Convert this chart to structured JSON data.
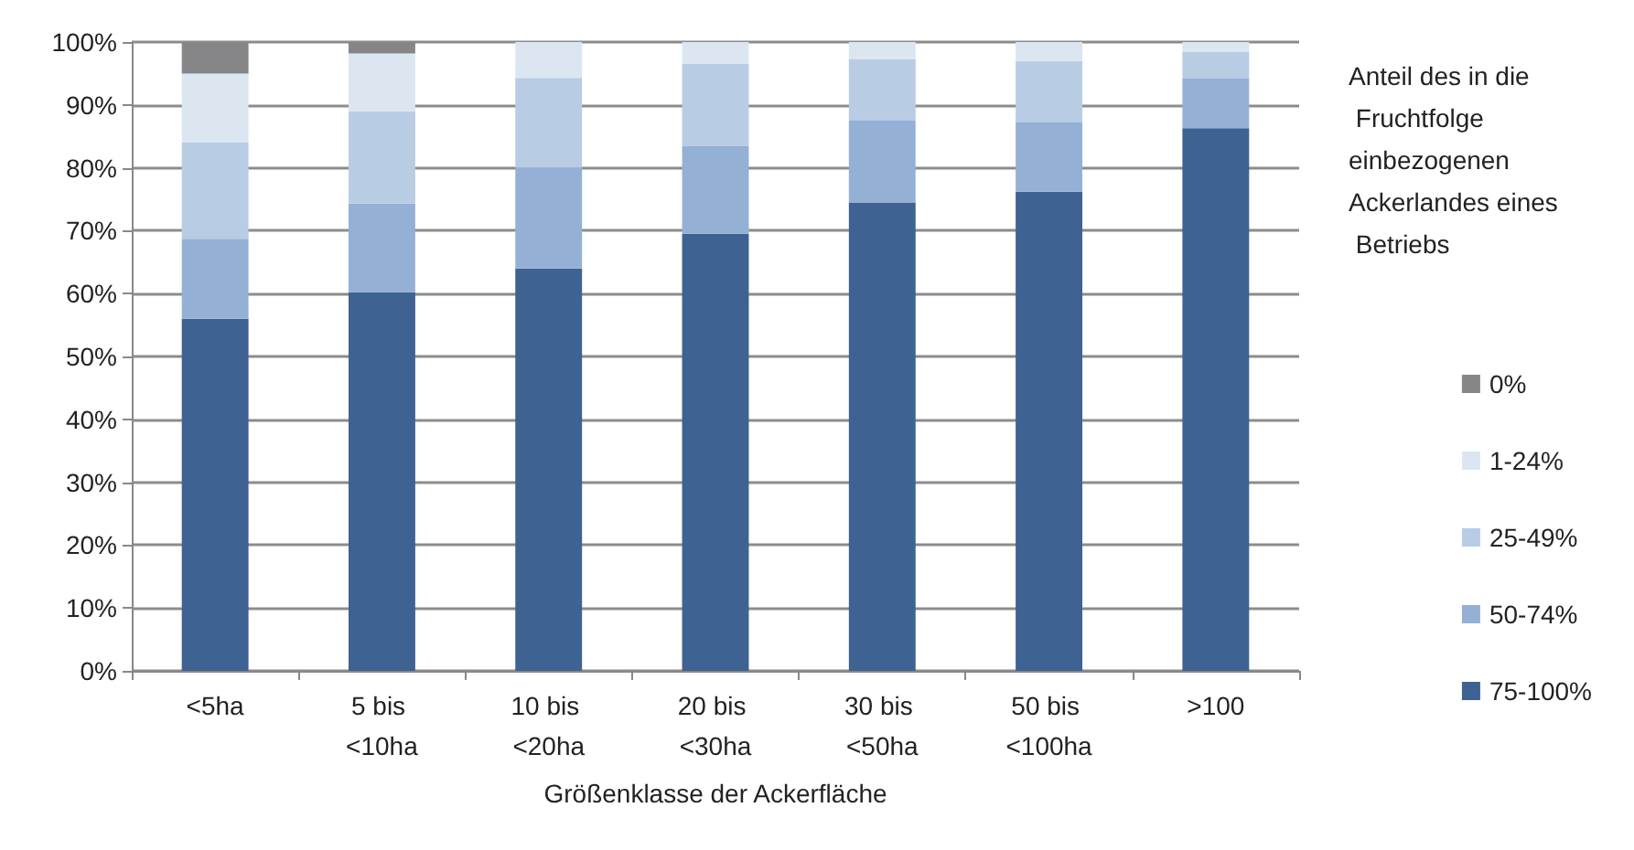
{
  "chart_data": {
    "type": "bar",
    "stacked": true,
    "xlabel": "Größenklasse der Ackerfläche",
    "legend_title": "Anteil des in die Fruchtfolge einbezogenen Ackerlandes eines Betriebs",
    "legend": "right",
    "categories": [
      "<5ha",
      "5 bis <10ha",
      "10 bis <20ha",
      "20 bis <30ha",
      "30 bis <50ha",
      "50 bis <100ha",
      ">100"
    ],
    "series": [
      {
        "name": "75-100%",
        "color": "#3e6291",
        "values": [
          56,
          60.2,
          64,
          69.5,
          74.5,
          76.2,
          86.3
        ]
      },
      {
        "name": "50-74%",
        "color": "#95b0d5",
        "values": [
          12.7,
          14.1,
          16,
          14,
          13,
          11,
          7.9
        ]
      },
      {
        "name": "25-49%",
        "color": "#b8cce4",
        "values": [
          15.3,
          14.7,
          14.3,
          13,
          9.8,
          9.8,
          4.2
        ]
      },
      {
        "name": "1-24%",
        "color": "#dce6f1",
        "values": [
          11,
          9.2,
          5.7,
          3.5,
          2.7,
          3,
          1.6
        ]
      },
      {
        "name": "0%",
        "color": "#868689",
        "values": [
          5,
          1.8,
          0,
          0,
          0,
          0,
          0
        ]
      }
    ],
    "ylim": [
      0,
      100
    ],
    "yticks": [
      {
        "value": 0,
        "label": "0%"
      },
      {
        "value": 10,
        "label": "10%"
      },
      {
        "value": 20,
        "label": "20%"
      },
      {
        "value": 30,
        "label": "30%"
      },
      {
        "value": 40,
        "label": "40%"
      },
      {
        "value": 50,
        "label": "50%"
      },
      {
        "value": 60,
        "label": "60%"
      },
      {
        "value": 70,
        "label": "70%"
      },
      {
        "value": 80,
        "label": "80%"
      },
      {
        "value": 90,
        "label": "90%"
      },
      {
        "value": 100,
        "label": "100%"
      }
    ],
    "grid": "y"
  }
}
